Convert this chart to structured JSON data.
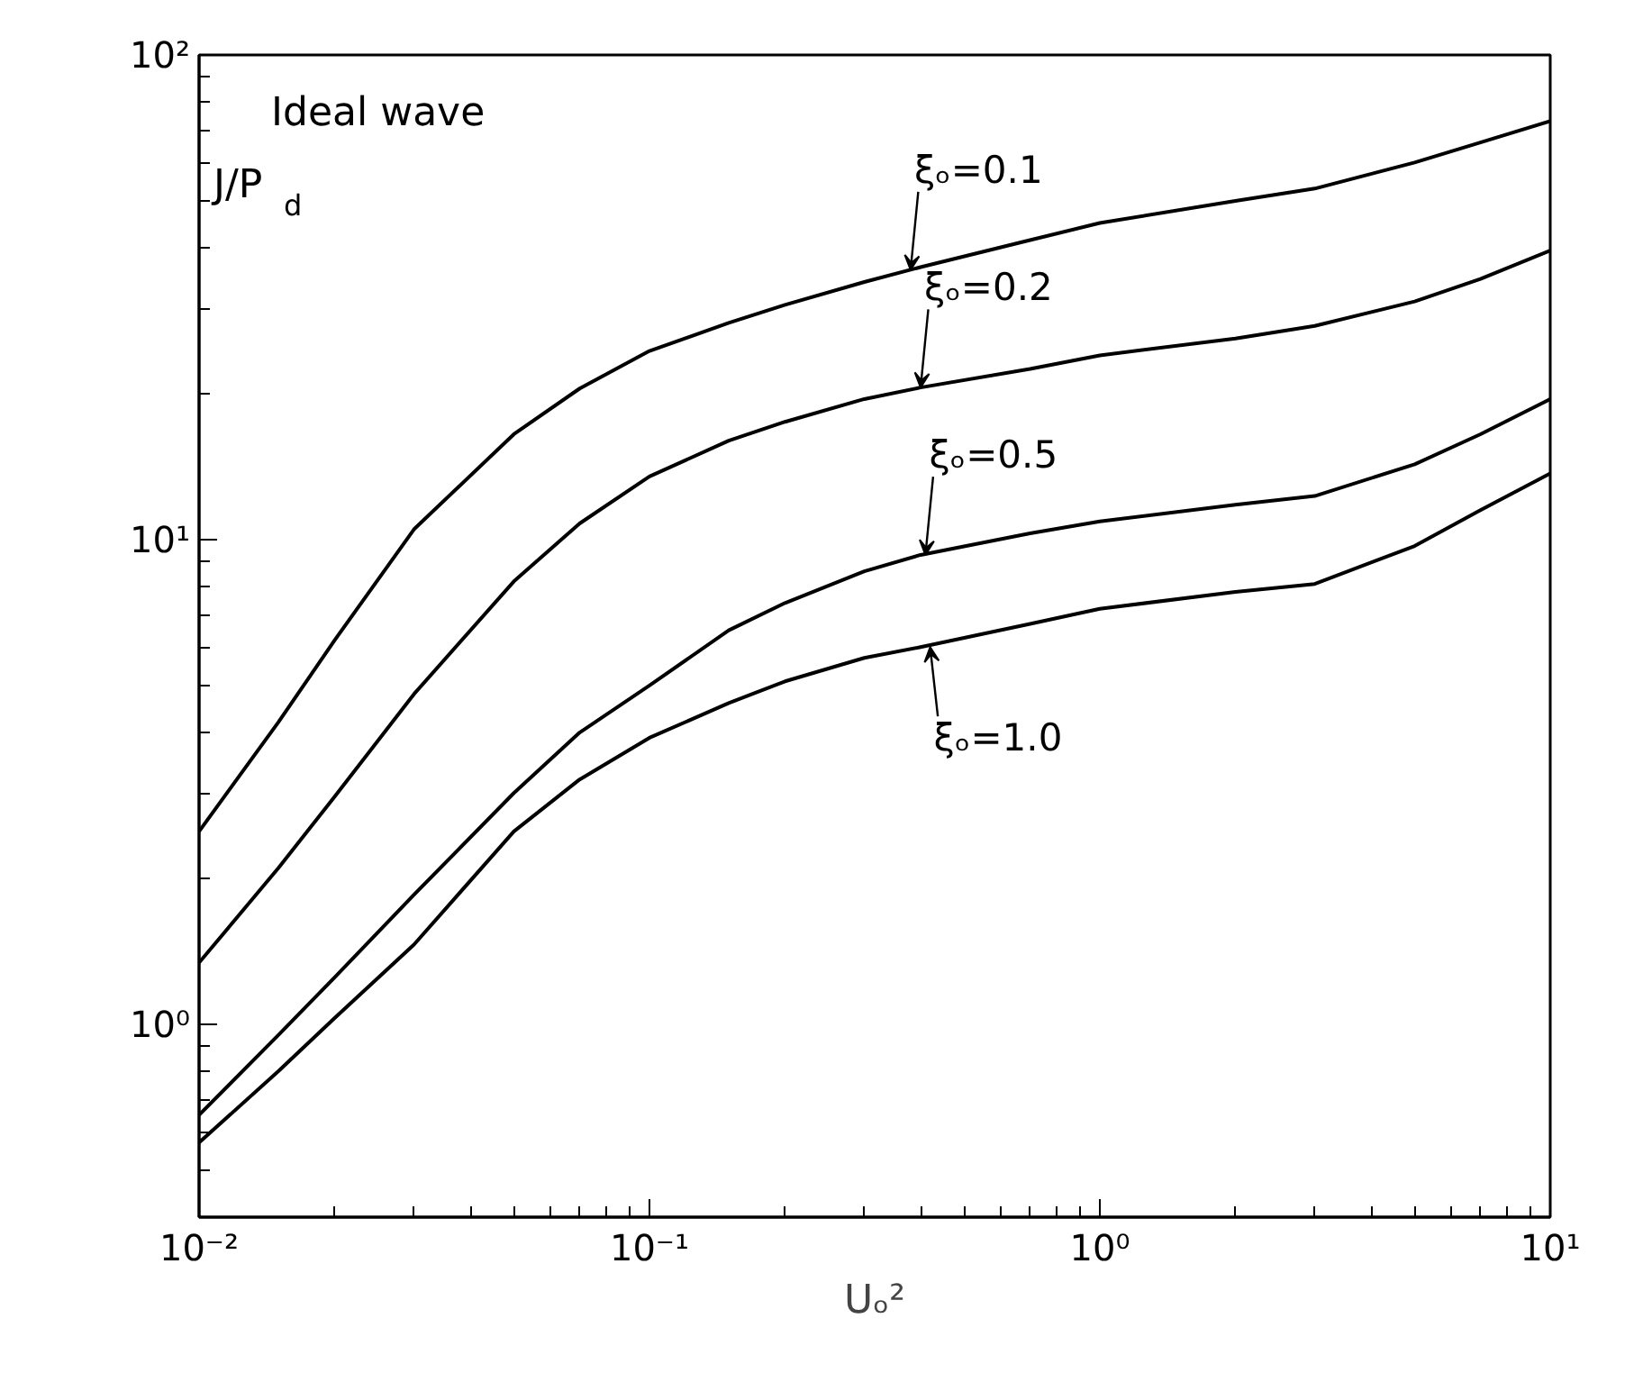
{
  "chart_data": {
    "type": "line",
    "xlabel": "Uₒ²",
    "ylabel": "J/P$_{d}$",
    "x": [
      0.01,
      0.015,
      0.02,
      0.03,
      0.05,
      0.07,
      0.1,
      0.15,
      0.2,
      0.3,
      0.4,
      0.7,
      1,
      2,
      3,
      5,
      7,
      10
    ],
    "series": [
      {
        "color": "#000000",
        "values": [
          2.5,
          4.2,
          6.2,
          10.5,
          16.5,
          20.5,
          24.5,
          28,
          30.5,
          34,
          36.5,
          41.5,
          45,
          50,
          53,
          60,
          66,
          73
        ]
      },
      {
        "color": "#000000",
        "values": [
          1.34,
          2.1,
          2.95,
          4.8,
          8.2,
          10.8,
          13.5,
          16,
          17.5,
          19.5,
          20.6,
          22.5,
          24,
          26,
          27.6,
          31,
          34.5,
          39.5
        ]
      },
      {
        "color": "#000000",
        "values": [
          0.65,
          0.95,
          1.25,
          1.85,
          3.0,
          4.0,
          5.0,
          6.5,
          7.4,
          8.6,
          9.3,
          10.3,
          10.9,
          11.8,
          12.3,
          14.3,
          16.5,
          19.5
        ]
      },
      {
        "color": "#000000",
        "values": [
          0.57,
          0.8,
          1.03,
          1.46,
          2.5,
          3.2,
          3.9,
          4.6,
          5.1,
          5.7,
          6.0,
          6.7,
          7.2,
          7.8,
          8.1,
          9.7,
          11.5,
          13.7
        ]
      }
    ],
    "annotations": [
      "Ideal wave",
      {
        "text": "ξₒ=0.1",
        "x": 0.38,
        "y": 36
      },
      {
        "text": "ξₒ=0.2",
        "x": 0.4,
        "y": 20.6
      },
      {
        "text": "ξₒ=0.5",
        "x": 0.41,
        "y": 9.3
      },
      {
        "text": "ξₒ=1.0",
        "x": 0.42,
        "y": 6.0
      }
    ],
    "log": "xy",
    "xlim": [
      0.01,
      10
    ],
    "ylim": [
      0.4,
      100
    ],
    "xticks": [
      {
        "value": 0.01,
        "label": "10⁻²"
      },
      {
        "value": 0.1,
        "label": "10⁻¹"
      },
      {
        "value": 1,
        "label": "10⁰"
      },
      {
        "value": 10,
        "label": "10¹"
      }
    ],
    "yticks": [
      {
        "value": 1,
        "label": "10⁰"
      },
      {
        "value": 10,
        "label": "10¹"
      },
      {
        "value": 100,
        "label": "10²"
      }
    ],
    "grid": false,
    "marker": "none",
    "line_style": "solid"
  }
}
